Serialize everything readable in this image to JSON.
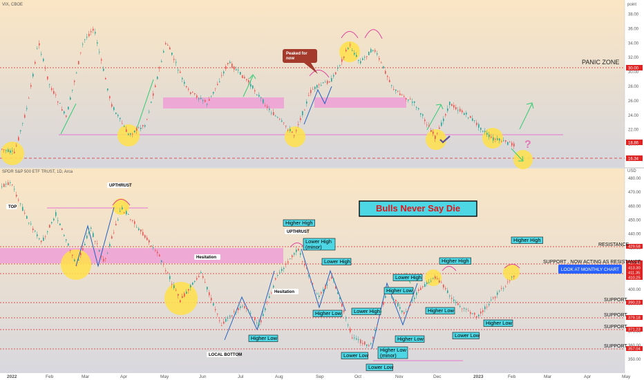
{
  "vix": {
    "title": "VIX, CBOE",
    "unit": "point",
    "ticks": [
      "38.00",
      "36.00",
      "34.00",
      "32.00",
      "30.00",
      "28.00",
      "26.00",
      "24.00",
      "22.00",
      "20.00",
      "18.00"
    ],
    "last_label": "18.86",
    "low_label": "16.34",
    "line_label": "30.00",
    "panic_label": "PANIC ZONE",
    "peaked_label": "Peaked for now"
  },
  "spy": {
    "title": "SPDR S&P 500 ETF TRUST, 1D, Arca",
    "unit": "USD",
    "ticks": [
      "480.00",
      "470.00",
      "460.00",
      "450.00",
      "440.00",
      "430.00",
      "420.00",
      "410.00",
      "400.00",
      "390.00",
      "380.00",
      "370.00",
      "360.00",
      "350.00"
    ],
    "level_labels": [
      "429.58",
      "417.43",
      "413.30",
      "411.35",
      "410.25",
      "390.23",
      "379.18",
      "371.23",
      "357.04"
    ],
    "headline": "Bulls Never Say Die",
    "monthly_button": "LOOK AT MONTHLY CHART",
    "resistance": "RESISTANCE",
    "support_resistance": "SUPPORT , NOW ACTING AS RESISTANCE",
    "support": "SUPPORT",
    "top": "TOP",
    "upthrust": "UPTHRUST",
    "hesitation": "Hesitation",
    "local_bottom": "LOCAL BOTTOM",
    "higher_high": "Higher High",
    "lower_high": "Lower High",
    "lower_high_minor": "Lower High (minor)",
    "higher_low": "Higher Low",
    "lower_low": "Lower Low",
    "higher_low_minor": "Higher Low (minor)"
  },
  "months": [
    "2022",
    "Feb",
    "Mar",
    "Apr",
    "May",
    "Jun",
    "Jul",
    "Aug",
    "Sep",
    "Oct",
    "Nov",
    "Dec",
    "2023",
    "Feb",
    "Mar",
    "Apr",
    "May"
  ],
  "chart_data": [
    {
      "type": "candlestick",
      "title": "VIX, CBOE",
      "ylabel": "point",
      "ylim": [
        17,
        39
      ],
      "x": [
        "2022",
        "Feb",
        "Mar",
        "Apr",
        "May",
        "Jun",
        "Jul",
        "Aug",
        "Sep",
        "Oct",
        "Nov",
        "Dec",
        "2023",
        "Feb"
      ],
      "close": [
        18,
        22,
        32,
        21,
        31,
        27,
        26,
        22,
        30,
        33,
        27,
        22,
        21,
        19
      ],
      "levels": {
        "panic": 30,
        "support": 20,
        "low": 16.34,
        "last": 18.86
      }
    },
    {
      "type": "candlestick",
      "title": "SPDR S&P 500 ETF TRUST, 1D, Arca",
      "ylabel": "USD",
      "ylim": [
        348,
        484
      ],
      "x": [
        "2022",
        "Feb",
        "Mar",
        "Apr",
        "May",
        "Jun",
        "Jul",
        "Aug",
        "Sep",
        "Oct",
        "Nov",
        "Dec",
        "2023",
        "Feb"
      ],
      "close": [
        477,
        444,
        436,
        412,
        398,
        378,
        406,
        426,
        394,
        364,
        398,
        404,
        382,
        413
      ],
      "levels": [
        429.58,
        417.43,
        413.3,
        411.35,
        410.25,
        390.23,
        379.18,
        371.23,
        357.04
      ]
    }
  ]
}
